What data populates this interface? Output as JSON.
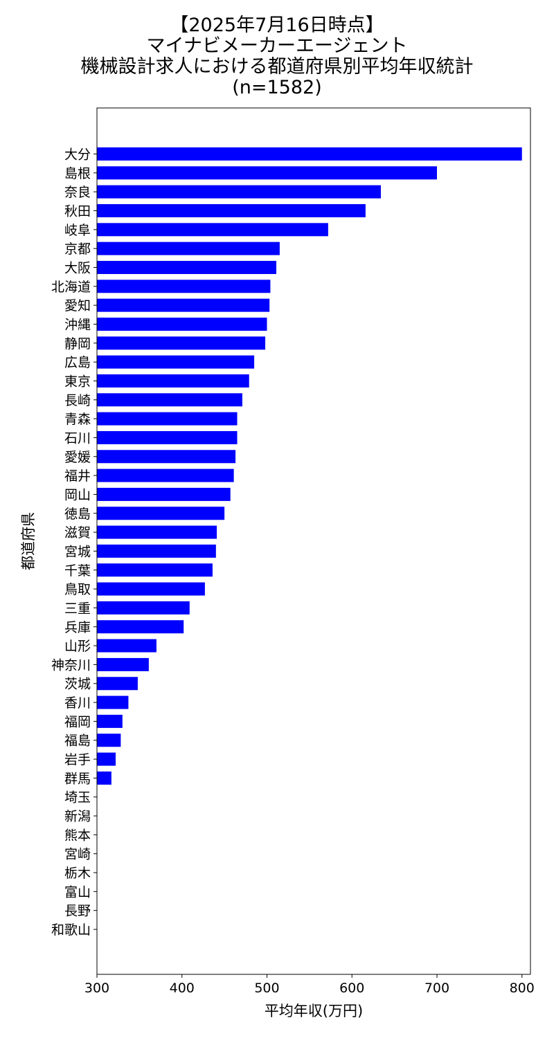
{
  "title_lines": [
    "【2025年7月16日時点】",
    "マイナビメーカーエージェント",
    "機械設計求人における都道府県別平均年収統計",
    "(n=1582)"
  ],
  "chart_data": {
    "type": "bar",
    "orientation": "horizontal",
    "title": "【2025年7月16日時点】 マイナビメーカーエージェント 機械設計求人における都道府県別平均年収統計 (n=1582)",
    "xlabel": "平均年収(万円)",
    "ylabel": "都道府県",
    "xlim": [
      300,
      810
    ],
    "xticks": [
      300,
      400,
      500,
      600,
      700,
      800
    ],
    "bar_color": "#0000ff",
    "grid": false,
    "categories": [
      "大分",
      "島根",
      "奈良",
      "秋田",
      "岐阜",
      "京都",
      "大阪",
      "北海道",
      "愛知",
      "沖縄",
      "静岡",
      "広島",
      "東京",
      "長崎",
      "青森",
      "石川",
      "愛媛",
      "福井",
      "岡山",
      "徳島",
      "滋賀",
      "宮城",
      "千葉",
      "鳥取",
      "三重",
      "兵庫",
      "山形",
      "神奈川",
      "茨城",
      "香川",
      "福岡",
      "福島",
      "岩手",
      "群馬",
      "埼玉",
      "新潟",
      "熊本",
      "宮崎",
      "栃木",
      "富山",
      "長野",
      "和歌山"
    ],
    "values": [
      800,
      700,
      634,
      616,
      572,
      515,
      511,
      504,
      503,
      500,
      498,
      485,
      479,
      471,
      465,
      465,
      463,
      461,
      457,
      450,
      441,
      440,
      436,
      427,
      409,
      402,
      370,
      361,
      348,
      337,
      330,
      328,
      322,
      317,
      300,
      300,
      300,
      300,
      300,
      300,
      300,
      300
    ]
  }
}
